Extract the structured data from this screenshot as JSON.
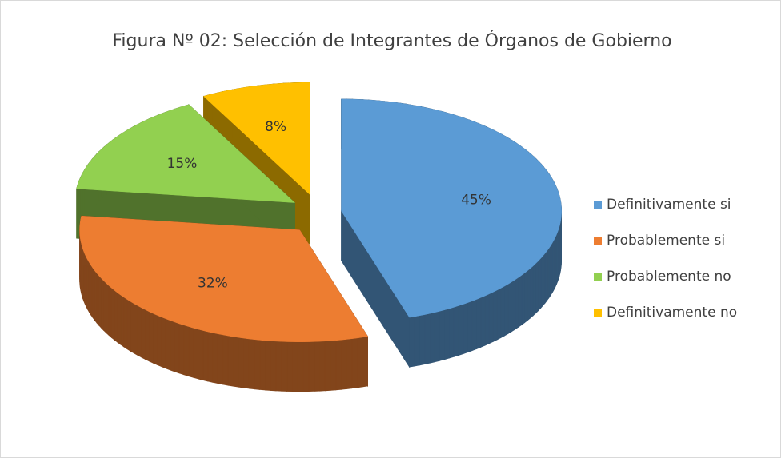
{
  "chart_data": {
    "type": "pie",
    "title": "Figura Nº 02: Selección de Integrantes de Órganos de Gobierno",
    "categories": [
      "Definitivamente si",
      "Probablemente si",
      "Probablemente no",
      "Definitivamente no"
    ],
    "values": [
      45,
      32,
      15,
      8
    ],
    "value_labels": [
      "45%",
      "32%",
      "15%",
      "8%"
    ],
    "colors": [
      "#5b9bd5",
      "#ed7d31",
      "#92d050",
      "#ffc000"
    ],
    "legend": "right"
  }
}
